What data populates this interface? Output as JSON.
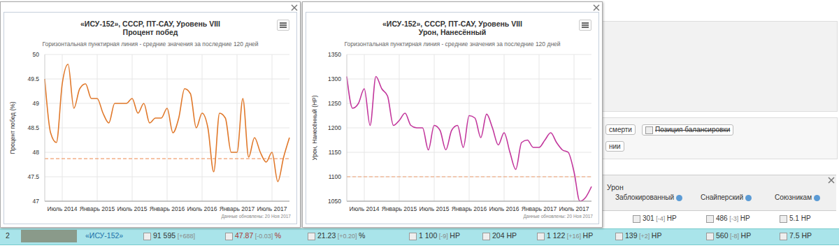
{
  "chart_data": [
    {
      "type": "line",
      "title": [
        "«ИСУ-152», СССР, ПТ-САУ, Уровень VIII",
        "Процент побед"
      ],
      "subtitle": "Горизонтальная пунктирная линия - средние значения за последние 120 дней",
      "y_label": "Процент побед (%)",
      "annotation": "Данные обновлены: 20 Ноя 2017",
      "categories": [
        null,
        null,
        null,
        "Июль 2014",
        null,
        null,
        null,
        null,
        null,
        "Январь 2015",
        null,
        null,
        null,
        null,
        null,
        "Июль 2015",
        null,
        null,
        null,
        null,
        null,
        "Январь 2016",
        null,
        null,
        null,
        null,
        null,
        "Июль 2016",
        null,
        null,
        null,
        null,
        null,
        "Январь 2017",
        null,
        null,
        null,
        null,
        null,
        "Июль 2017",
        null,
        null,
        null
      ],
      "values": [
        49.5,
        48.4,
        48.2,
        49.4,
        49.8,
        48.9,
        49.3,
        49.4,
        49.1,
        49.1,
        48.8,
        48.6,
        49.0,
        49.0,
        49.0,
        49.1,
        48.8,
        49.0,
        48.6,
        48.7,
        48.7,
        48.9,
        48.4,
        48.7,
        49.3,
        49.2,
        48.5,
        48.8,
        48.5,
        47.6,
        48.8,
        48.7,
        48.0,
        48.0,
        49.1,
        47.9,
        48.3,
        48.0,
        47.8,
        48.0,
        47.4,
        47.9,
        48.3
      ],
      "color": "#e0782a",
      "average": 47.87,
      "ylim": [
        47,
        50
      ],
      "yticks": [
        47,
        47.5,
        48,
        48.5,
        49,
        49.5,
        50
      ],
      "grid": true,
      "marker": "none"
    },
    {
      "type": "line",
      "title": [
        "«ИСУ-152», СССР, ПТ-САУ, Уровень VIII",
        "Урон, Нанесённый"
      ],
      "subtitle": "Горизонтальная пунктирная линия - средние значения за последние 120 дней",
      "y_label": "Урон, Нанесённый (HP)",
      "annotation": "Данные обновлены: 20 Ноя 2017",
      "categories": [
        null,
        null,
        null,
        "Июль 2014",
        null,
        null,
        null,
        null,
        null,
        "Январь 2015",
        null,
        null,
        null,
        null,
        null,
        "Июль 2015",
        null,
        null,
        null,
        null,
        null,
        "Январь 2016",
        null,
        null,
        null,
        null,
        null,
        "Июль 2016",
        null,
        null,
        null,
        null,
        null,
        "Январь 2017",
        null,
        null,
        null,
        null,
        null,
        "Июль 2017",
        null,
        null,
        null
      ],
      "values": [
        1305,
        1240,
        1250,
        1280,
        1205,
        1305,
        1280,
        1265,
        1205,
        1215,
        1230,
        1205,
        1200,
        1200,
        1155,
        1205,
        1195,
        1155,
        1195,
        1205,
        1160,
        1225,
        1220,
        1180,
        1228,
        1200,
        1165,
        1190,
        1150,
        1115,
        1170,
        1175,
        1160,
        1160,
        1175,
        1190,
        1170,
        1155,
        1150,
        1110,
        1050,
        1058,
        1080
      ],
      "color": "#c2369c",
      "average": 1100,
      "ylim": [
        1050,
        1350
      ],
      "yticks": [
        1050,
        1100,
        1150,
        1200,
        1250,
        1300,
        1350
      ],
      "grid": true,
      "marker": "none"
    }
  ],
  "page": {
    "tags": [
      "смерти",
      "Позиция балансировки",
      "нии"
    ],
    "table": {
      "header": "Урон",
      "columns": [
        "Заблокированный",
        "Снайперский",
        "Союзникам"
      ],
      "partial_row": [
        "301 [-4] HP",
        "486 [-3] HP",
        "5.1 HP"
      ],
      "row": [
        "2",
        "«ИСУ-152»",
        "91 595 [+688]",
        "47.87 [-0.03] %",
        "21.23 [+0.20] %",
        "1 100 [-9] HP",
        "204 HP",
        "1 122 [+16] HP",
        "139 [+2] HP",
        "560 [-8] HP",
        "7.5 HP"
      ]
    }
  }
}
